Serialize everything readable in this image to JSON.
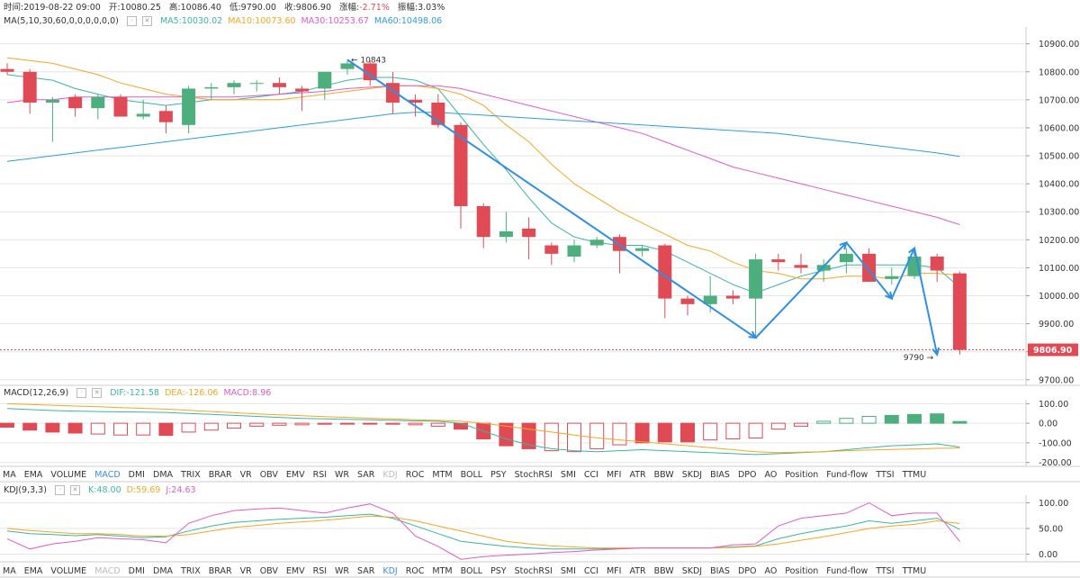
{
  "info_bar": {
    "time_label": "时间:2019-08-22 09:00",
    "open_label": "开:10080.25",
    "high_label": "高:10086.40",
    "low_label": "低:9790.00",
    "close_label": "收:9806.90",
    "change_prefix": "涨幅:",
    "change_value": "-2.71%",
    "amplitude_label": "振幅:3.03%"
  },
  "ma_header": {
    "name": "MA(5,10,30,60,0,0,0,0,0,0)",
    "items": [
      {
        "label": "MA5:10030.02",
        "color": "#3ab5a5"
      },
      {
        "label": "MA10:10073.60",
        "color": "#f5a623"
      },
      {
        "label": "MA30:10253.67",
        "color": "#e05bc9"
      },
      {
        "label": "MA60:10498.06",
        "color": "#2f9fd8"
      }
    ]
  },
  "macd_header": {
    "name": "MACD(12,26,9)",
    "items": [
      {
        "label": "DIF:-121.58",
        "color": "#3ab5a5"
      },
      {
        "label": "DEA:-126.06",
        "color": "#f5a623"
      },
      {
        "label": "MACD:8.96",
        "color": "#e05bc9"
      }
    ]
  },
  "kdj_header": {
    "name": "KDJ(9,3,3)",
    "items": [
      {
        "label": "K:48.00",
        "color": "#3ab5a5"
      },
      {
        "label": "D:59.69",
        "color": "#f5a623"
      },
      {
        "label": "J:24.63",
        "color": "#e05bc9"
      }
    ]
  },
  "indicator_tabs": [
    "MA",
    "EMA",
    "VOLUME",
    "MACD",
    "DMI",
    "DMA",
    "TRIX",
    "BRAR",
    "VR",
    "OBV",
    "EMV",
    "RSI",
    "WR",
    "SAR",
    "KDJ",
    "ROC",
    "MTM",
    "BOLL",
    "PSY",
    "StochRSI",
    "SMI",
    "CCI",
    "MFI",
    "ATR",
    "BBW",
    "SKDJ",
    "BIAS",
    "DPO",
    "AO",
    "Position",
    "Fund-flow",
    "TTSI",
    "TTMU"
  ],
  "tabs_row1_active": "MACD",
  "tabs_row1_dim": "KDJ",
  "tabs_row2_active": "KDJ",
  "tabs_row2_dim": "MACD",
  "colors": {
    "up": "#4caf7d",
    "down": "#e04a55",
    "grid": "#e6e6e6",
    "arrow": "#2f8fe0"
  },
  "chart_data": [
    {
      "type": "candlestick",
      "name": "price",
      "y_ticks": [
        9700,
        9800,
        9900,
        10000,
        10100,
        10200,
        10300,
        10400,
        10500,
        10600,
        10700,
        10800,
        10900
      ],
      "y_tick_labels": [
        "9700.00",
        "9800.00",
        "9900.00",
        "10000.00",
        "10100.00",
        "10200.00",
        "10300.00",
        "10400.00",
        "10500.00",
        "10600.00",
        "10700.00",
        "10800.00",
        "10900.00"
      ],
      "ylim": [
        9680,
        10960
      ],
      "high_annotation": {
        "label": "10843",
        "value": 10843,
        "index": 15
      },
      "low_annotation": {
        "label": "9790",
        "value": 9790,
        "index": 41
      },
      "last_price": {
        "label": "9806.90",
        "value": 9806.9
      },
      "candles": [
        {
          "o": 10810,
          "h": 10830,
          "l": 10790,
          "c": 10800
        },
        {
          "o": 10800,
          "h": 10810,
          "l": 10650,
          "c": 10690
        },
        {
          "o": 10690,
          "h": 10710,
          "l": 10550,
          "c": 10700
        },
        {
          "o": 10710,
          "h": 10720,
          "l": 10640,
          "c": 10670
        },
        {
          "o": 10670,
          "h": 10720,
          "l": 10630,
          "c": 10710
        },
        {
          "o": 10710,
          "h": 10720,
          "l": 10640,
          "c": 10640
        },
        {
          "o": 10640,
          "h": 10700,
          "l": 10630,
          "c": 10650
        },
        {
          "o": 10660,
          "h": 10680,
          "l": 10580,
          "c": 10620
        },
        {
          "o": 10610,
          "h": 10750,
          "l": 10580,
          "c": 10740
        },
        {
          "o": 10740,
          "h": 10760,
          "l": 10700,
          "c": 10745
        },
        {
          "o": 10745,
          "h": 10770,
          "l": 10720,
          "c": 10760
        },
        {
          "o": 10760,
          "h": 10770,
          "l": 10730,
          "c": 10760
        },
        {
          "o": 10760,
          "h": 10780,
          "l": 10720,
          "c": 10745
        },
        {
          "o": 10740,
          "h": 10750,
          "l": 10660,
          "c": 10730
        },
        {
          "o": 10740,
          "h": 10800,
          "l": 10700,
          "c": 10800
        },
        {
          "o": 10810,
          "h": 10843,
          "l": 10790,
          "c": 10830
        },
        {
          "o": 10830,
          "h": 10840,
          "l": 10750,
          "c": 10770
        },
        {
          "o": 10760,
          "h": 10800,
          "l": 10650,
          "c": 10690
        },
        {
          "o": 10700,
          "h": 10720,
          "l": 10640,
          "c": 10690
        },
        {
          "o": 10690,
          "h": 10720,
          "l": 10600,
          "c": 10610
        },
        {
          "o": 10610,
          "h": 10620,
          "l": 10240,
          "c": 10320
        },
        {
          "o": 10320,
          "h": 10330,
          "l": 10170,
          "c": 10210
        },
        {
          "o": 10210,
          "h": 10300,
          "l": 10190,
          "c": 10230
        },
        {
          "o": 10240,
          "h": 10280,
          "l": 10130,
          "c": 10210
        },
        {
          "o": 10180,
          "h": 10190,
          "l": 10110,
          "c": 10150
        },
        {
          "o": 10140,
          "h": 10200,
          "l": 10120,
          "c": 10180
        },
        {
          "o": 10180,
          "h": 10210,
          "l": 10170,
          "c": 10200
        },
        {
          "o": 10210,
          "h": 10220,
          "l": 10080,
          "c": 10160
        },
        {
          "o": 10160,
          "h": 10180,
          "l": 10140,
          "c": 10170
        },
        {
          "o": 10180,
          "h": 10185,
          "l": 9920,
          "c": 9990
        },
        {
          "o": 9990,
          "h": 10000,
          "l": 9930,
          "c": 9970
        },
        {
          "o": 9970,
          "h": 10070,
          "l": 9940,
          "c": 10000
        },
        {
          "o": 10000,
          "h": 10020,
          "l": 9970,
          "c": 9990
        },
        {
          "o": 9990,
          "h": 10150,
          "l": 9850,
          "c": 10130
        },
        {
          "o": 10130,
          "h": 10150,
          "l": 10090,
          "c": 10120
        },
        {
          "o": 10110,
          "h": 10150,
          "l": 10080,
          "c": 10100
        },
        {
          "o": 10090,
          "h": 10130,
          "l": 10050,
          "c": 10110
        },
        {
          "o": 10120,
          "h": 10170,
          "l": 10080,
          "c": 10150
        },
        {
          "o": 10150,
          "h": 10170,
          "l": 10050,
          "c": 10050
        },
        {
          "o": 10060,
          "h": 10100,
          "l": 10040,
          "c": 10070
        },
        {
          "o": 10070,
          "h": 10150,
          "l": 10060,
          "c": 10140
        },
        {
          "o": 10140,
          "h": 10150,
          "l": 10050,
          "c": 10090
        },
        {
          "o": 10080,
          "h": 10086.4,
          "l": 9790,
          "c": 9806.9
        }
      ],
      "ma_series": [
        {
          "name": "MA5",
          "color": "#3ab5a5",
          "values": [
            10790,
            10780,
            10770,
            10740,
            10720,
            10700,
            10690,
            10680,
            10690,
            10700,
            10700,
            10710,
            10720,
            10730,
            10750,
            10770,
            10780,
            10780,
            10770,
            10740,
            10640,
            10540,
            10450,
            10350,
            10260,
            10210,
            10190,
            10180,
            10180,
            10160,
            10120,
            10080,
            10040,
            10010,
            10040,
            10070,
            10090,
            10110,
            10110,
            10110,
            10110,
            10100,
            10030
          ]
        },
        {
          "name": "MA10",
          "color": "#f5a623",
          "values": [
            10850,
            10840,
            10830,
            10810,
            10790,
            10760,
            10740,
            10720,
            10710,
            10700,
            10700,
            10700,
            10700,
            10710,
            10720,
            10730,
            10740,
            10750,
            10750,
            10740,
            10720,
            10680,
            10610,
            10550,
            10470,
            10400,
            10350,
            10300,
            10260,
            10220,
            10180,
            10160,
            10120,
            10090,
            10080,
            10060,
            10060,
            10070,
            10070,
            10060,
            10080,
            10080,
            10073
          ]
        },
        {
          "name": "MA30",
          "color": "#e05bc9",
          "values": [
            10690,
            10700,
            10700,
            10710,
            10710,
            10710,
            10710,
            10710,
            10710,
            10710,
            10710,
            10715,
            10720,
            10725,
            10730,
            10740,
            10745,
            10750,
            10750,
            10750,
            10740,
            10720,
            10700,
            10680,
            10660,
            10640,
            10620,
            10600,
            10580,
            10550,
            10520,
            10490,
            10460,
            10440,
            10420,
            10400,
            10380,
            10360,
            10340,
            10320,
            10300,
            10280,
            10254
          ]
        },
        {
          "name": "MA60",
          "color": "#2f9fd8",
          "values": [
            10480,
            10490,
            10500,
            10510,
            10520,
            10530,
            10540,
            10550,
            10560,
            10570,
            10580,
            10590,
            10600,
            10610,
            10620,
            10630,
            10640,
            10650,
            10655,
            10655,
            10650,
            10645,
            10640,
            10635,
            10630,
            10625,
            10620,
            10615,
            10610,
            10605,
            10600,
            10595,
            10590,
            10585,
            10580,
            10570,
            10560,
            10550,
            10540,
            10530,
            10520,
            10510,
            10498
          ]
        }
      ]
    },
    {
      "type": "bar",
      "name": "MACD",
      "y_ticks": [
        -200,
        -100,
        0,
        100
      ],
      "y_tick_labels": [
        "-200.00",
        "-100.00",
        "0.00",
        "100.00"
      ],
      "ylim": [
        -220,
        120
      ],
      "histogram": [
        -20,
        -35,
        -45,
        -50,
        -55,
        -60,
        -60,
        -62,
        -45,
        -35,
        -25,
        -15,
        -10,
        -8,
        -5,
        -3,
        -2,
        -5,
        -8,
        -15,
        -30,
        -80,
        -115,
        -130,
        -140,
        -145,
        -130,
        -110,
        -100,
        -95,
        -95,
        -85,
        -80,
        -75,
        -30,
        -15,
        10,
        25,
        35,
        40,
        45,
        48,
        9
      ],
      "dif": [
        75,
        70,
        65,
        62,
        60,
        58,
        57,
        55,
        50,
        45,
        40,
        35,
        30,
        25,
        22,
        20,
        18,
        15,
        12,
        10,
        0,
        -40,
        -80,
        -110,
        -130,
        -140,
        -145,
        -140,
        -135,
        -140,
        -145,
        -150,
        -155,
        -160,
        -155,
        -150,
        -145,
        -135,
        -125,
        -115,
        -110,
        -105,
        -121.58
      ],
      "dea": [
        100,
        96,
        92,
        88,
        84,
        80,
        76,
        72,
        66,
        60,
        54,
        48,
        43,
        38,
        34,
        30,
        26,
        22,
        18,
        15,
        10,
        0,
        -15,
        -30,
        -45,
        -60,
        -75,
        -85,
        -95,
        -105,
        -115,
        -125,
        -135,
        -145,
        -150,
        -148,
        -145,
        -140,
        -137,
        -134,
        -131,
        -128,
        -126.06
      ]
    },
    {
      "type": "line",
      "name": "KDJ",
      "y_ticks": [
        0,
        50,
        100
      ],
      "y_tick_labels": [
        "0.00",
        "50.00",
        "100.00"
      ],
      "ylim": [
        -15,
        115
      ],
      "k": [
        45,
        40,
        38,
        36,
        38,
        35,
        32,
        34,
        45,
        55,
        62,
        65,
        68,
        70,
        72,
        75,
        78,
        70,
        55,
        40,
        25,
        20,
        15,
        12,
        10,
        10,
        10,
        11,
        12,
        12,
        12,
        12,
        14,
        16,
        30,
        40,
        48,
        55,
        65,
        60,
        65,
        70,
        48
      ],
      "d": [
        50,
        46,
        43,
        40,
        40,
        38,
        35,
        35,
        38,
        45,
        52,
        56,
        60,
        63,
        66,
        70,
        74,
        72,
        65,
        55,
        45,
        35,
        25,
        20,
        16,
        14,
        12,
        12,
        12,
        12,
        12,
        12,
        13,
        15,
        20,
        27,
        34,
        42,
        50,
        55,
        58,
        65,
        59.69
      ],
      "j": [
        30,
        10,
        20,
        25,
        32,
        30,
        28,
        22,
        60,
        75,
        85,
        88,
        90,
        85,
        80,
        90,
        98,
        80,
        35,
        15,
        -10,
        -5,
        -2,
        0,
        3,
        5,
        8,
        10,
        12,
        12,
        12,
        12,
        18,
        20,
        55,
        70,
        75,
        80,
        100,
        75,
        80,
        80,
        24.63
      ]
    }
  ]
}
